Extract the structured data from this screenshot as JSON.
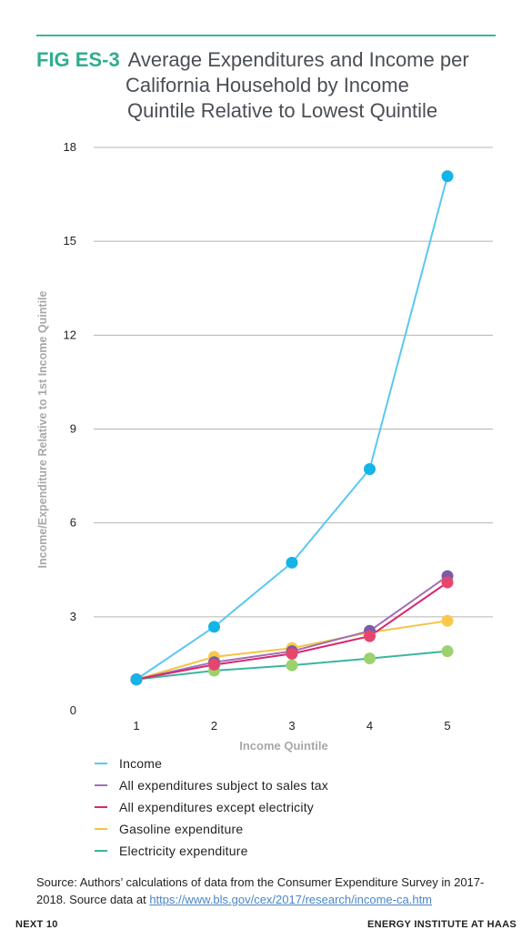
{
  "header": {
    "fig_label": "FIG ES-3",
    "title_line1": "Average Expenditures and Income per",
    "title_line2": "California Household by Income",
    "title_line3": "Quintile Relative to Lowest Quintile"
  },
  "chart_data": {
    "type": "line",
    "x": [
      1,
      2,
      3,
      4,
      5
    ],
    "x_tick_labels": [
      "1",
      "2",
      "3",
      "4",
      "5"
    ],
    "xlabel": "Income Quintile",
    "ylabel": "Income/Expenditure Relative to 1st Income Quintile",
    "ylim": [
      0,
      18
    ],
    "y_ticks": [
      0,
      3,
      6,
      9,
      12,
      15,
      18
    ],
    "grid": "horizontal",
    "legend_position": "bottom",
    "series": [
      {
        "name": "Income",
        "line_color": "#5ac8f0",
        "marker_color": "#14b4e6",
        "values": [
          1.0,
          2.68,
          4.73,
          7.72,
          17.08
        ]
      },
      {
        "name": "All expenditures subject to sales tax",
        "line_color": "#a070b4",
        "marker_color": "#7d5aa5",
        "values": [
          1.0,
          1.55,
          1.9,
          2.55,
          4.3
        ]
      },
      {
        "name": "All expenditures except electricity",
        "line_color": "#d7286e",
        "marker_color": "#e6466e",
        "values": [
          1.0,
          1.47,
          1.82,
          2.38,
          4.1
        ]
      },
      {
        "name": "Gasoline expenditure",
        "line_color": "#f5c346",
        "marker_color": "#fac84b",
        "values": [
          1.0,
          1.72,
          2.0,
          2.5,
          2.87
        ]
      },
      {
        "name": "Electricity expenditure",
        "line_color": "#3cb4a0",
        "marker_color": "#9bd26e",
        "values": [
          1.0,
          1.28,
          1.45,
          1.67,
          1.9
        ]
      }
    ]
  },
  "source": {
    "text": "Source: Authors’ calculations of data from the Consumer Expenditure Survey in 2017-2018. Source data at ",
    "link": "https://www.bls.gov/cex/2017/research/income-ca.htm"
  },
  "footer": {
    "left": "NEXT 10",
    "right": "ENERGY INSTITUTE AT HAAS"
  },
  "colors": {
    "accent": "#2fae8f",
    "grid": "#b4b4b4",
    "axis_label": "#a8a8a8"
  }
}
